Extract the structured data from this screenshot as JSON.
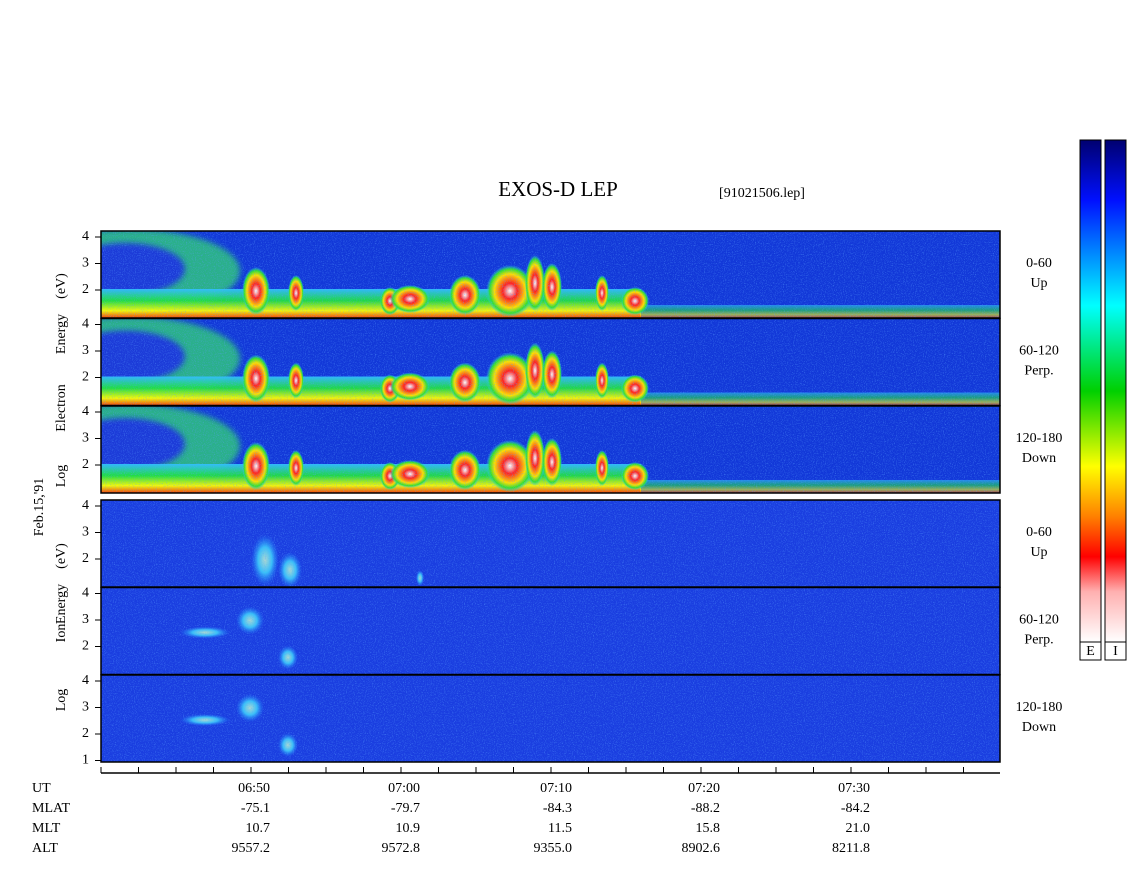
{
  "header": {
    "title": "EXOS-D LEP",
    "file": "[91021506.lep]"
  },
  "date": "Feb.15,'91",
  "electron": {
    "axis_label": [
      "Log",
      "Electron",
      "Energy",
      "(eV)"
    ],
    "panels": [
      {
        "angle": "0-60",
        "direction": "Up",
        "yticks": [
          "4",
          "3",
          "2"
        ]
      },
      {
        "angle": "60-120",
        "direction": "Perp.",
        "yticks": [
          "4",
          "3",
          "2"
        ]
      },
      {
        "angle": "120-180",
        "direction": "Down",
        "yticks": [
          "4",
          "3",
          "2"
        ]
      }
    ]
  },
  "ion": {
    "axis_label": [
      "Log",
      "Ion",
      "Energy",
      "(eV)"
    ],
    "panels": [
      {
        "angle": "0-60",
        "direction": "Up",
        "yticks": [
          "4",
          "3",
          "2"
        ]
      },
      {
        "angle": "60-120",
        "direction": "Perp.",
        "yticks": [
          "4",
          "3",
          "2"
        ]
      },
      {
        "angle": "120-180",
        "direction": "Down",
        "yticks": [
          "4",
          "3",
          "2",
          "1"
        ]
      }
    ]
  },
  "ephemeris": {
    "rows": [
      {
        "label": "UT",
        "values": [
          "06:50",
          "07:00",
          "07:10",
          "07:20",
          "07:30"
        ]
      },
      {
        "label": "MLAT",
        "values": [
          "-75.1",
          "-79.7",
          "-84.3",
          "-88.2",
          "-84.2"
        ]
      },
      {
        "label": "MLT",
        "values": [
          "10.7",
          "10.9",
          "11.5",
          "15.8",
          "21.0"
        ]
      },
      {
        "label": "ALT",
        "values": [
          "9557.2",
          "9572.8",
          "9355.0",
          "8902.6",
          "8211.8"
        ]
      }
    ]
  },
  "colorbar": {
    "labels": [
      "E",
      "I"
    ]
  }
}
